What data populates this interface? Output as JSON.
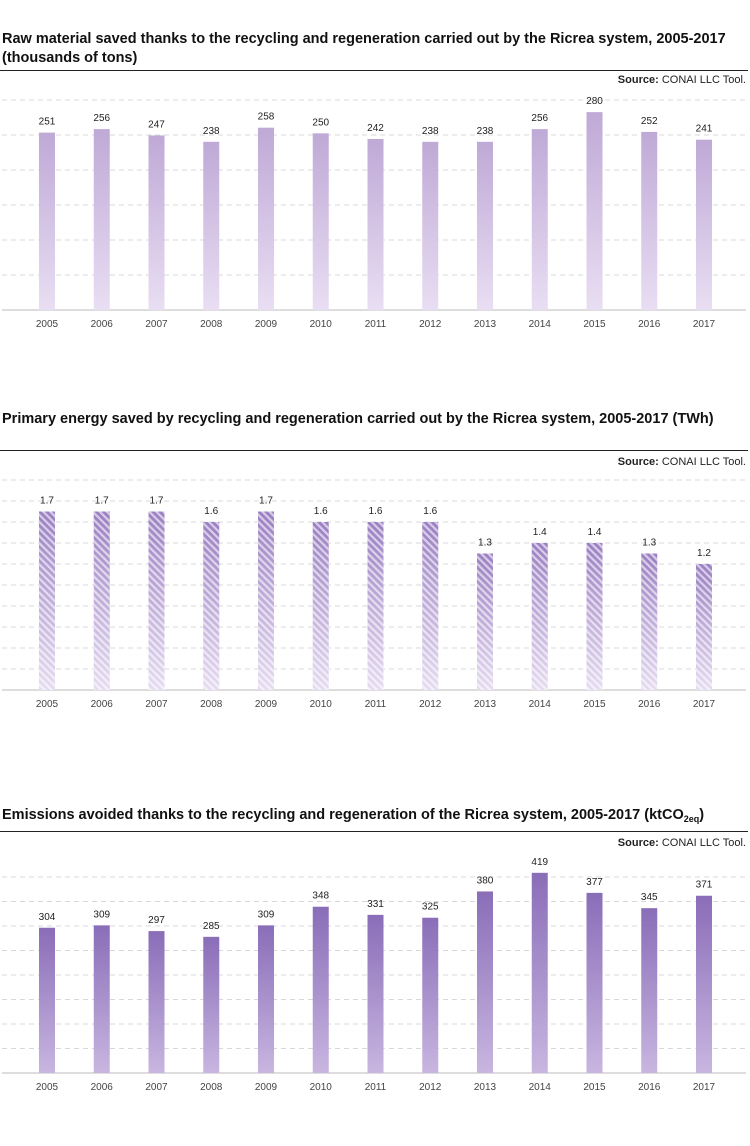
{
  "source_label": "Source:",
  "source_text": "CONAI LLC Tool.",
  "charts": [
    {
      "title": "Raw material saved thanks to the recycling and regeneration carried out by the Ricrea system, 2005-2017 (thousands of tons)"
    },
    {
      "title": "Primary energy saved by recycling and regeneration carried out by the Ricrea system, 2005-2017 (TWh)"
    },
    {
      "title_main": "Emissions avoided thanks to the recycling and regeneration of the Ricrea system, 2005-2017 (ktCO",
      "title_sub": "2eq",
      "title_end": ")"
    }
  ],
  "colors": {
    "chart1_bar_top": "#bfa9d6",
    "chart1_bar_bottom": "#e9def3",
    "chart2_bar_top": "#9a7fc2",
    "chart2_bar_bottom": "#e6dcf1",
    "chart3_bar_top": "#8a6db8",
    "chart3_bar_bottom": "#c8b6e0",
    "grid": "#d8d8d8",
    "axis": "#bbbbbb"
  },
  "chart_data": [
    {
      "type": "bar",
      "categories": [
        "2005",
        "2006",
        "2007",
        "2008",
        "2009",
        "2010",
        "2011",
        "2012",
        "2013",
        "2014",
        "2015",
        "2016",
        "2017"
      ],
      "values": [
        251,
        256,
        247,
        238,
        258,
        250,
        242,
        238,
        238,
        256,
        280,
        252,
        241
      ],
      "value_labels": [
        "251",
        "256",
        "247",
        "238",
        "258",
        "250",
        "242",
        "238",
        "238",
        "256",
        "280",
        "252",
        "241"
      ],
      "ylim": [
        0,
        300
      ],
      "grid": true,
      "title": "Raw material saved thanks to the recycling and regeneration carried out by the Ricrea system, 2005-2017 (thousands of tons)"
    },
    {
      "type": "bar",
      "categories": [
        "2005",
        "2006",
        "2007",
        "2008",
        "2009",
        "2010",
        "2011",
        "2012",
        "2013",
        "2014",
        "2015",
        "2016",
        "2017"
      ],
      "values": [
        1.7,
        1.7,
        1.7,
        1.6,
        1.7,
        1.6,
        1.6,
        1.6,
        1.3,
        1.4,
        1.4,
        1.3,
        1.2
      ],
      "value_labels": [
        "1.7",
        "1.7",
        "1.7",
        "1.6",
        "1.7",
        "1.6",
        "1.6",
        "1.6",
        "1.3",
        "1.4",
        "1.4",
        "1.3",
        "1.2"
      ],
      "ylim": [
        0,
        2.0
      ],
      "grid": true,
      "pattern": "diagonal-hatch",
      "title": "Primary energy saved by recycling and regeneration carried out by the Ricrea system, 2005-2017 (TWh)"
    },
    {
      "type": "bar",
      "categories": [
        "2005",
        "2006",
        "2007",
        "2008",
        "2009",
        "2010",
        "2011",
        "2012",
        "2013",
        "2014",
        "2015",
        "2016",
        "2017"
      ],
      "values": [
        304,
        309,
        297,
        285,
        309,
        348,
        331,
        325,
        380,
        419,
        377,
        345,
        371
      ],
      "value_labels": [
        "304",
        "309",
        "297",
        "285",
        "309",
        "348",
        "331",
        "325",
        "380",
        "419",
        "377",
        "345",
        "371"
      ],
      "ylim": [
        0,
        450
      ],
      "grid": true,
      "title": "Emissions avoided thanks to the recycling and regeneration of the Ricrea system, 2005-2017 (ktCO2eq)"
    }
  ]
}
